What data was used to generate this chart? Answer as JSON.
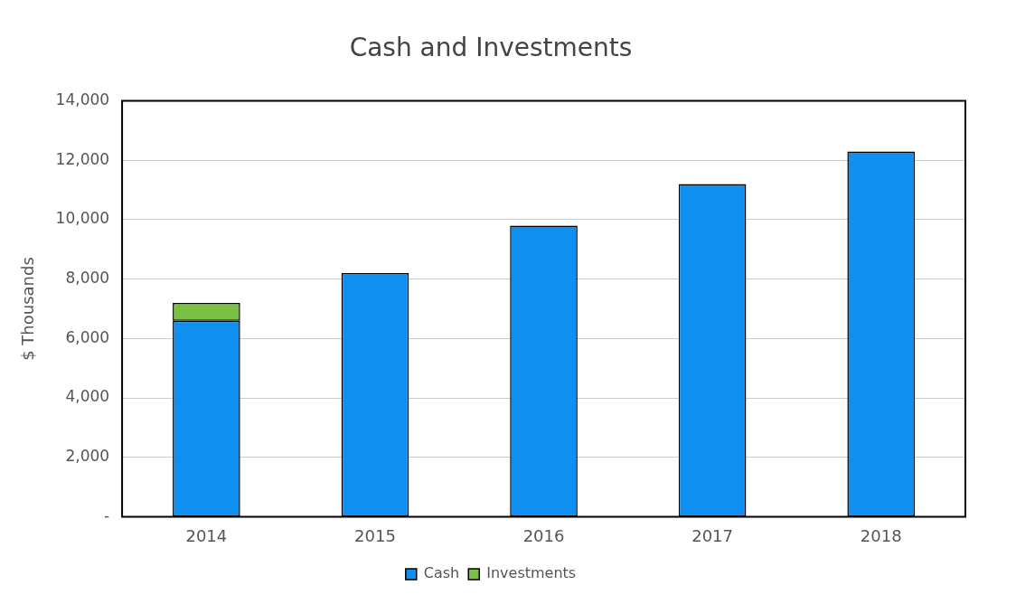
{
  "chart_data": {
    "type": "bar",
    "title": "Cash and Investments",
    "ylabel": "$ Thousands",
    "categories": [
      "2014",
      "2015",
      "2016",
      "2017",
      "2018"
    ],
    "stacked": true,
    "series": [
      {
        "name": "Cash",
        "color": "#0f8ff0",
        "values": [
          6600,
          8200,
          9800,
          11200,
          12300
        ]
      },
      {
        "name": "Investments",
        "color": "#7ac143",
        "values": [
          600,
          0,
          0,
          0,
          0
        ]
      }
    ],
    "ylim": [
      0,
      14000
    ],
    "yticks": [
      {
        "value": 0,
        "label": "-"
      },
      {
        "value": 2000,
        "label": "2,000"
      },
      {
        "value": 4000,
        "label": "4,000"
      },
      {
        "value": 6000,
        "label": "6,000"
      },
      {
        "value": 8000,
        "label": "8,000"
      },
      {
        "value": 10000,
        "label": "10,000"
      },
      {
        "value": 12000,
        "label": "12,000"
      },
      {
        "value": 14000,
        "label": "14,000"
      }
    ],
    "grid": "y",
    "legend": "bottom"
  }
}
